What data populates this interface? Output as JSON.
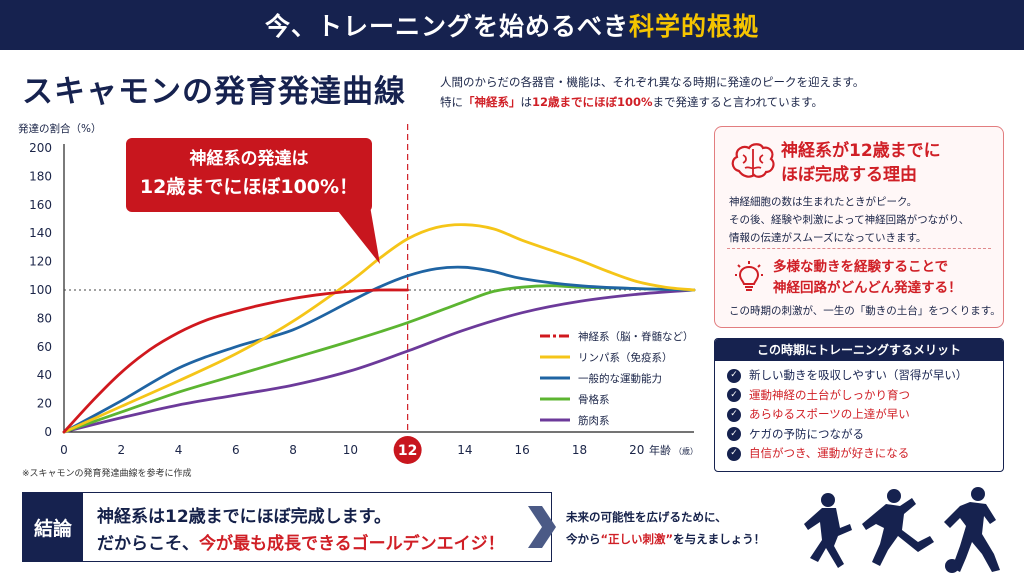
{
  "banner": {
    "title_main": "今、トレーニングを始めるべき",
    "title_highlight": "科学的根拠"
  },
  "heading": {
    "title": "スキャモンの発育発達曲線"
  },
  "intro": {
    "line1": "人間のからだの各器官・機能は、それぞれ異なる時期に発達のピークを迎えます。",
    "line2_pre": "特に",
    "line2_red1": "「神経系」",
    "line2_mid": "は",
    "line2_red2": "12歳までにほぼ100%",
    "line2_post": "まで発達すると言われています。"
  },
  "callout": {
    "line1": "神経系の発達は",
    "line2": "12歳までにほぼ100%！"
  },
  "reason_box": {
    "title_line1": "神経系が12歳までに",
    "title_line2": "ほぼ完成する理由",
    "body_line1": "神経細胞の数は生まれたときがピーク。",
    "body_line2": "その後、経験や刺激によって神経回路がつながり、",
    "body_line3": "情報の伝達がスムーズになっていきます。",
    "sub_line1": "多様な動きを経験することで",
    "sub_line2": "神経回路がどんどん発達する！",
    "footer": "この時期の刺激が、一生の「動きの土台」をつくります。"
  },
  "merit_box": {
    "title": "この時期にトレーニングするメリット",
    "items": [
      {
        "text": "新しい動きを吸収しやすい（習得が早い）",
        "tone": "blue"
      },
      {
        "text": "運動神経の土台がしっかり育つ",
        "tone": "red"
      },
      {
        "text": "あらゆるスポーツの上達が早い",
        "tone": "red"
      },
      {
        "text": "ケガの予防につながる",
        "tone": "blue"
      },
      {
        "text": "自信がつき、運動が好きになる",
        "tone": "red"
      }
    ]
  },
  "footnote": "※スキャモンの発育発達曲線を参考に作成",
  "conclusion": {
    "label": "結論",
    "line1": "神経系は12歳までにほぼ完成します。",
    "line2_pre": "だからこそ、",
    "line2_red": "今が最も成長できるゴールデンエイジ！",
    "future_line1": "未来の可能性を広げるために、",
    "future_line2_pre": "今から",
    "future_line2_red": "“正しい刺激”",
    "future_line2_post": "を与えましょう！"
  },
  "colors": {
    "navy": "#16224f",
    "red": "#d01f26",
    "yellow": "#f5c400"
  },
  "chart_data": {
    "type": "line",
    "title": "スキャモンの発育発達曲線",
    "ylabel": "発達の割合（%）",
    "xlabel": "年齢",
    "xlabel_unit": "（歳）",
    "xlim": [
      0,
      22
    ],
    "ylim": [
      0,
      200
    ],
    "x_ticks": [
      0,
      2,
      4,
      6,
      8,
      10,
      12,
      14,
      16,
      18,
      20
    ],
    "y_ticks": [
      0,
      20,
      40,
      60,
      80,
      100,
      120,
      140,
      160,
      180,
      200
    ],
    "highlight_x": 12,
    "reference_y": 100,
    "series": [
      {
        "name": "神経系（脳・脊髄など）",
        "color": "#d0181e",
        "dashed_legend": true,
        "x": [
          0,
          1,
          2,
          3,
          4,
          5,
          6,
          7,
          8,
          9,
          10,
          11,
          12
        ],
        "y": [
          0,
          22,
          42,
          58,
          70,
          79,
          85,
          90,
          94,
          97,
          99,
          100,
          100
        ]
      },
      {
        "name": "リンパ系（免疫系）",
        "color": "#f5c518",
        "x": [
          0,
          2,
          4,
          6,
          8,
          10,
          11,
          12,
          13,
          14,
          15,
          16,
          17,
          18,
          19,
          20,
          21,
          22
        ],
        "y": [
          0,
          18,
          36,
          55,
          78,
          106,
          122,
          136,
          144,
          146,
          143,
          135,
          128,
          121,
          113,
          106,
          102,
          100
        ]
      },
      {
        "name": "一般的な運動能力",
        "color": "#1f64a3",
        "x": [
          0,
          2,
          4,
          6,
          8,
          10,
          11,
          12,
          13,
          14,
          15,
          16,
          18,
          20,
          22
        ],
        "y": [
          0,
          22,
          45,
          60,
          72,
          92,
          102,
          110,
          115,
          116,
          113,
          108,
          103,
          101,
          100
        ]
      },
      {
        "name": "骨格系",
        "color": "#5cb531",
        "x": [
          0,
          2,
          4,
          6,
          8,
          10,
          12,
          14,
          15,
          16,
          17,
          18,
          20,
          22
        ],
        "y": [
          0,
          14,
          28,
          40,
          52,
          64,
          77,
          92,
          99,
          102,
          103,
          102,
          101,
          100
        ]
      },
      {
        "name": "筋肉系",
        "color": "#6c3a9a",
        "x": [
          0,
          2,
          4,
          6,
          8,
          10,
          12,
          14,
          16,
          18,
          20,
          22
        ],
        "y": [
          0,
          10,
          19,
          26,
          33,
          43,
          57,
          72,
          84,
          92,
          97,
          100
        ]
      }
    ]
  }
}
